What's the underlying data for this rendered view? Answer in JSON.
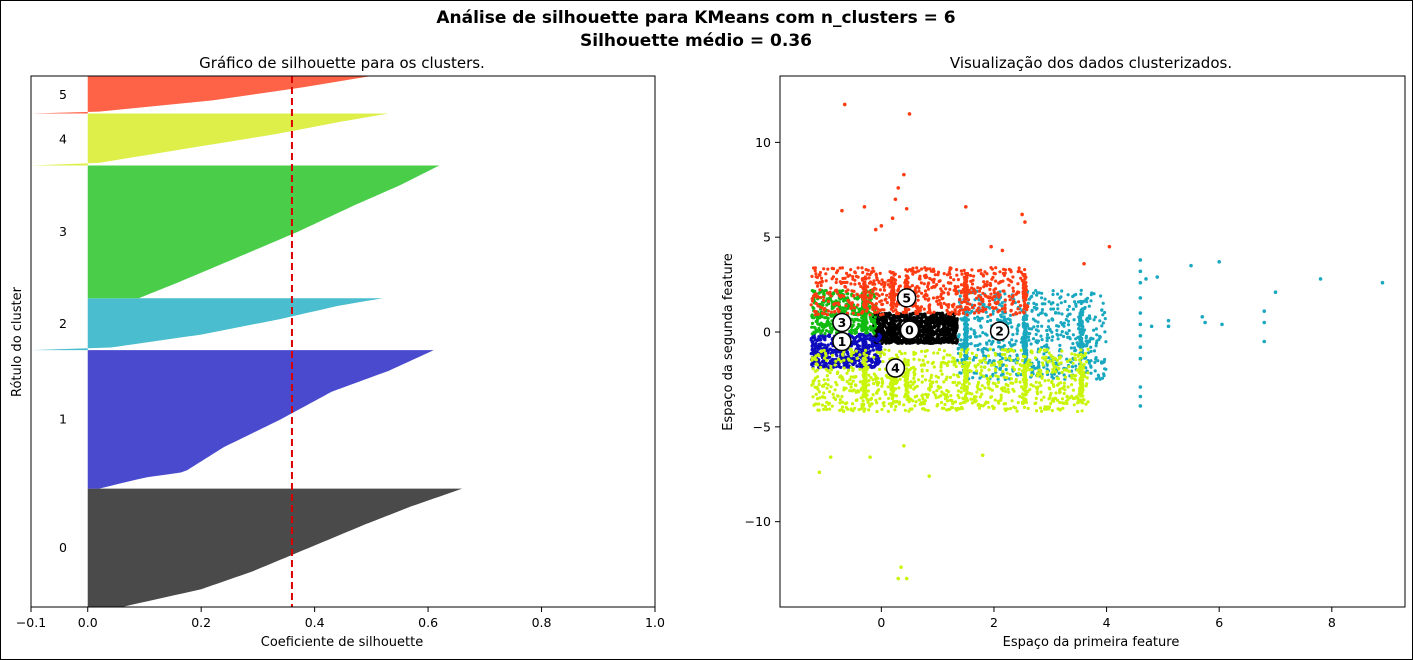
{
  "figure": {
    "title_line1": "Análise de silhouette para KMeans com n_clusters = 6",
    "title_line2": "Silhouette médio = 0.36"
  },
  "chart_data": [
    {
      "type": "area",
      "subtype": "silhouette-plot",
      "title": "Gráfico de silhouette para os clusters.",
      "xlabel": "Coeficiente de silhouette",
      "ylabel": "Rótulo do cluster",
      "xlim": [
        -0.1,
        1.0
      ],
      "xticks": [
        -0.1,
        0.0,
        0.2,
        0.4,
        0.6,
        0.8,
        1.0
      ],
      "xtick_labels": [
        "−0.1",
        "0.0",
        "0.2",
        "0.4",
        "0.6",
        "0.8",
        "1.0"
      ],
      "average_silhouette": 0.36,
      "average_line_color": "#dd0000",
      "clusters": [
        {
          "label": "0",
          "color": "#4a4a4a",
          "span": [
            0,
            20.5
          ],
          "min": -0.05,
          "max": 0.66,
          "profile": [
            [
              0,
              0.06
            ],
            [
              0.15,
              0.2
            ],
            [
              0.3,
              0.29
            ],
            [
              0.5,
              0.39
            ],
            [
              0.7,
              0.49
            ],
            [
              0.85,
              0.57
            ],
            [
              1,
              0.66
            ]
          ]
        },
        {
          "label": "1",
          "color": "#4a4ace",
          "span": [
            20.5,
            44.5
          ],
          "min": 0.0,
          "max": 0.61,
          "profile": [
            [
              0,
              0.02
            ],
            [
              0.08,
              0.1
            ],
            [
              0.12,
              0.17
            ],
            [
              0.3,
              0.24
            ],
            [
              0.5,
              0.34
            ],
            [
              0.7,
              0.43
            ],
            [
              0.85,
              0.53
            ],
            [
              1,
              0.61
            ]
          ]
        },
        {
          "label": "2",
          "color": "#4abdce",
          "span": [
            44.5,
            53.5
          ],
          "min": -0.1,
          "max": 0.52,
          "profile": [
            [
              0,
              -0.1
            ],
            [
              0.05,
              0.04
            ],
            [
              0.3,
              0.2
            ],
            [
              0.6,
              0.34
            ],
            [
              0.85,
              0.44
            ],
            [
              1,
              0.52
            ]
          ]
        },
        {
          "label": "3",
          "color": "#4ace4a",
          "span": [
            53.5,
            76.5
          ],
          "min": 0.0,
          "max": 0.62,
          "profile": [
            [
              0,
              0.09
            ],
            [
              0.12,
              0.16
            ],
            [
              0.3,
              0.26
            ],
            [
              0.5,
              0.37
            ],
            [
              0.7,
              0.47
            ],
            [
              0.85,
              0.55
            ],
            [
              1,
              0.62
            ]
          ]
        },
        {
          "label": "4",
          "color": "#deef4a",
          "span": [
            76.5,
            85.5
          ],
          "min": -0.1,
          "max": 0.53,
          "profile": [
            [
              0,
              -0.1
            ],
            [
              0.05,
              0.02
            ],
            [
              0.3,
              0.16
            ],
            [
              0.6,
              0.33
            ],
            [
              0.85,
              0.45
            ],
            [
              1,
              0.53
            ]
          ]
        },
        {
          "label": "5",
          "color": "#ff6347",
          "span": [
            85.5,
            92.0
          ],
          "min": -0.1,
          "max": 0.5,
          "profile": [
            [
              0,
              -0.1
            ],
            [
              0.05,
              0.02
            ],
            [
              0.35,
              0.22
            ],
            [
              0.7,
              0.38
            ],
            [
              1,
              0.5
            ]
          ]
        }
      ],
      "ylim": [
        0,
        92
      ]
    },
    {
      "type": "scatter",
      "title": "Visualização dos dados clusterizados.",
      "xlabel": "Espaço da primeira feature",
      "ylabel": "Espaço da segunda feature",
      "xlim": [
        -1.8,
        9.3
      ],
      "ylim": [
        -14.5,
        13.5
      ],
      "xticks": [
        0,
        2,
        4,
        6,
        8
      ],
      "xtick_labels": [
        "0",
        "2",
        "4",
        "6",
        "8"
      ],
      "yticks": [
        -10,
        -5,
        0,
        5,
        10
      ],
      "ytick_labels": [
        "−10",
        "−5",
        "0",
        "5",
        "10"
      ],
      "series": [
        {
          "cluster": "0",
          "color": "#000000",
          "x_range": [
            -0.15,
            1.35
          ],
          "y_range": [
            -0.6,
            1.0
          ],
          "count": 1400
        },
        {
          "cluster": "1",
          "color": "#0c0cbc",
          "x_range": [
            -1.25,
            0.0
          ],
          "y_range": [
            -1.9,
            -0.1
          ],
          "count": 700
        },
        {
          "cluster": "2",
          "color": "#19a8c0",
          "x_range": [
            1.35,
            4.0
          ],
          "y_range": [
            -2.5,
            2.2
          ],
          "count": 900
        },
        {
          "cluster": "3",
          "color": "#11bb11",
          "x_range": [
            -1.25,
            -0.1
          ],
          "y_range": [
            -0.1,
            2.2
          ],
          "count": 600
        },
        {
          "cluster": "4",
          "color": "#c8f50a",
          "x_range": [
            -1.25,
            3.7
          ],
          "y_range": [
            -4.2,
            -0.9
          ],
          "count": 1300
        },
        {
          "cluster": "5",
          "color": "#ff3b12",
          "x_range": [
            -1.25,
            2.6
          ],
          "y_range": [
            0.9,
            3.4
          ],
          "count": 900
        }
      ],
      "outliers": [
        {
          "x": -0.65,
          "y": 12.0,
          "color": "#ff3b12"
        },
        {
          "x": 0.5,
          "y": 11.5,
          "color": "#ff3b12"
        },
        {
          "x": 0.4,
          "y": 8.3,
          "color": "#ff3b12"
        },
        {
          "x": 0.3,
          "y": 7.6,
          "color": "#ff3b12"
        },
        {
          "x": 0.25,
          "y": 7.0,
          "color": "#ff3b12"
        },
        {
          "x": -0.3,
          "y": 6.6,
          "color": "#ff3b12"
        },
        {
          "x": 1.5,
          "y": 6.6,
          "color": "#ff3b12"
        },
        {
          "x": 2.5,
          "y": 6.2,
          "color": "#ff3b12"
        },
        {
          "x": 0.2,
          "y": 6.0,
          "color": "#ff3b12"
        },
        {
          "x": -0.7,
          "y": 6.4,
          "color": "#ff3b12"
        },
        {
          "x": 0.45,
          "y": 6.5,
          "color": "#ff3b12"
        },
        {
          "x": 2.55,
          "y": 5.8,
          "color": "#ff3b12"
        },
        {
          "x": 0.0,
          "y": 5.6,
          "color": "#ff3b12"
        },
        {
          "x": -0.1,
          "y": 5.4,
          "color": "#ff3b12"
        },
        {
          "x": 1.95,
          "y": 4.5,
          "color": "#ff3b12"
        },
        {
          "x": 2.15,
          "y": 4.3,
          "color": "#ff3b12"
        },
        {
          "x": 4.05,
          "y": 4.5,
          "color": "#ff3b12"
        },
        {
          "x": 3.6,
          "y": 3.6,
          "color": "#ff3b12"
        },
        {
          "x": 0.3,
          "y": -13.0,
          "color": "#c8f50a"
        },
        {
          "x": 0.45,
          "y": -13.0,
          "color": "#c8f50a"
        },
        {
          "x": 0.35,
          "y": -12.4,
          "color": "#c8f50a"
        },
        {
          "x": 0.85,
          "y": -7.6,
          "color": "#c8f50a"
        },
        {
          "x": -1.1,
          "y": -7.4,
          "color": "#c8f50a"
        },
        {
          "x": -0.9,
          "y": -6.6,
          "color": "#c8f50a"
        },
        {
          "x": -0.2,
          "y": -6.6,
          "color": "#c8f50a"
        },
        {
          "x": 0.4,
          "y": -6.0,
          "color": "#c8f50a"
        },
        {
          "x": 1.8,
          "y": -6.5,
          "color": "#c8f50a"
        },
        {
          "x": 2.0,
          "y": -4.0,
          "color": "#c8f50a"
        },
        {
          "x": 3.3,
          "y": -3.4,
          "color": "#c8f50a"
        },
        {
          "x": 4.6,
          "y": 3.8,
          "color": "#19a8c0"
        },
        {
          "x": 4.6,
          "y": 3.2,
          "color": "#19a8c0"
        },
        {
          "x": 4.6,
          "y": 2.6,
          "color": "#19a8c0"
        },
        {
          "x": 4.6,
          "y": 1.8,
          "color": "#19a8c0"
        },
        {
          "x": 4.6,
          "y": 1.0,
          "color": "#19a8c0"
        },
        {
          "x": 4.6,
          "y": 0.4,
          "color": "#19a8c0"
        },
        {
          "x": 4.6,
          "y": -0.2,
          "color": "#19a8c0"
        },
        {
          "x": 4.6,
          "y": -0.8,
          "color": "#19a8c0"
        },
        {
          "x": 4.6,
          "y": -1.4,
          "color": "#19a8c0"
        },
        {
          "x": 4.6,
          "y": -2.9,
          "color": "#19a8c0"
        },
        {
          "x": 4.6,
          "y": -3.4,
          "color": "#19a8c0"
        },
        {
          "x": 4.6,
          "y": -3.9,
          "color": "#19a8c0"
        },
        {
          "x": 4.7,
          "y": 2.8,
          "color": "#19a8c0"
        },
        {
          "x": 4.8,
          "y": 0.3,
          "color": "#19a8c0"
        },
        {
          "x": 4.9,
          "y": 2.9,
          "color": "#19a8c0"
        },
        {
          "x": 5.1,
          "y": 0.6,
          "color": "#19a8c0"
        },
        {
          "x": 5.1,
          "y": 0.3,
          "color": "#19a8c0"
        },
        {
          "x": 5.5,
          "y": 3.5,
          "color": "#19a8c0"
        },
        {
          "x": 5.7,
          "y": 0.8,
          "color": "#19a8c0"
        },
        {
          "x": 5.75,
          "y": 0.5,
          "color": "#19a8c0"
        },
        {
          "x": 6.0,
          "y": 3.7,
          "color": "#19a8c0"
        },
        {
          "x": 6.05,
          "y": 0.4,
          "color": "#19a8c0"
        },
        {
          "x": 6.8,
          "y": 1.1,
          "color": "#19a8c0"
        },
        {
          "x": 6.8,
          "y": 0.5,
          "color": "#19a8c0"
        },
        {
          "x": 6.8,
          "y": -0.5,
          "color": "#19a8c0"
        },
        {
          "x": 7.0,
          "y": 2.1,
          "color": "#19a8c0"
        },
        {
          "x": 7.8,
          "y": 2.8,
          "color": "#19a8c0"
        },
        {
          "x": 8.9,
          "y": 2.6,
          "color": "#19a8c0"
        }
      ],
      "centers": [
        {
          "label": "0",
          "x": 0.5,
          "y": 0.1
        },
        {
          "label": "1",
          "x": -0.7,
          "y": -0.5
        },
        {
          "label": "2",
          "x": 2.1,
          "y": 0.05
        },
        {
          "label": "3",
          "x": -0.7,
          "y": 0.5
        },
        {
          "label": "4",
          "x": 0.25,
          "y": -1.9
        },
        {
          "label": "5",
          "x": 0.45,
          "y": 1.8
        }
      ]
    }
  ]
}
